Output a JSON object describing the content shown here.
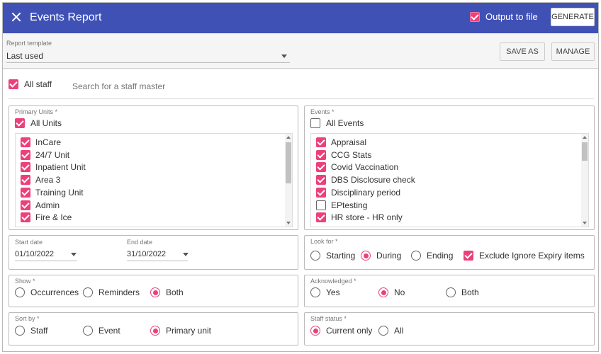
{
  "header": {
    "title": "Events Report",
    "output_label": "Output to file",
    "output_checked": true,
    "generate_label": "GENERATE"
  },
  "toolbar": {
    "template_label": "Report template",
    "template_value": "Last used",
    "save_as_label": "SAVE AS",
    "manage_label": "MANAGE"
  },
  "staff": {
    "all_staff_label": "All staff",
    "all_staff_checked": true,
    "search_placeholder": "Search for a staff master"
  },
  "units": {
    "label": "Primary Units *",
    "all_label": "All Units",
    "all_checked": true,
    "items": [
      {
        "label": "InCare",
        "checked": true
      },
      {
        "label": "24/7 Unit",
        "checked": true
      },
      {
        "label": "Inpatient Unit",
        "checked": true
      },
      {
        "label": "Area 3",
        "checked": true
      },
      {
        "label": "Training Unit",
        "checked": true
      },
      {
        "label": "Admin",
        "checked": true
      },
      {
        "label": "Fire & Ice",
        "checked": true
      }
    ]
  },
  "events": {
    "label": "Events *",
    "all_label": "All Events",
    "all_checked": false,
    "items": [
      {
        "label": "Appraisal",
        "checked": true
      },
      {
        "label": "CCG Stats",
        "checked": true
      },
      {
        "label": "Covid Vaccination",
        "checked": true
      },
      {
        "label": "DBS Disclosure check",
        "checked": true
      },
      {
        "label": "Disciplinary period",
        "checked": true
      },
      {
        "label": "EPtesting",
        "checked": false
      },
      {
        "label": "HR store - HR only",
        "checked": true
      }
    ]
  },
  "dates": {
    "start_label": "Start date",
    "start_value": "01/10/2022",
    "end_label": "End date",
    "end_value": "31/10/2022"
  },
  "look_for": {
    "label": "Look for *",
    "options": [
      {
        "label": "Starting",
        "selected": false
      },
      {
        "label": "During",
        "selected": true
      },
      {
        "label": "Ending",
        "selected": false
      }
    ],
    "exclude_label": "Exclude Ignore Expiry items",
    "exclude_checked": true
  },
  "show": {
    "label": "Show *",
    "options": [
      {
        "label": "Occurrences",
        "selected": false
      },
      {
        "label": "Reminders",
        "selected": false
      },
      {
        "label": "Both",
        "selected": true
      }
    ]
  },
  "acknowledged": {
    "label": "Acknowledged *",
    "options": [
      {
        "label": "Yes",
        "selected": false
      },
      {
        "label": "No",
        "selected": true
      },
      {
        "label": "Both",
        "selected": false
      }
    ]
  },
  "sort_by": {
    "label": "Sort by *",
    "options": [
      {
        "label": "Staff",
        "selected": false
      },
      {
        "label": "Event",
        "selected": false
      },
      {
        "label": "Primary unit",
        "selected": true
      }
    ]
  },
  "staff_status": {
    "label": "Staff status *",
    "options": [
      {
        "label": "Current only",
        "selected": true
      },
      {
        "label": "All",
        "selected": false
      }
    ]
  },
  "colors": {
    "header": "#3f51b5",
    "accent": "#ec407a"
  }
}
